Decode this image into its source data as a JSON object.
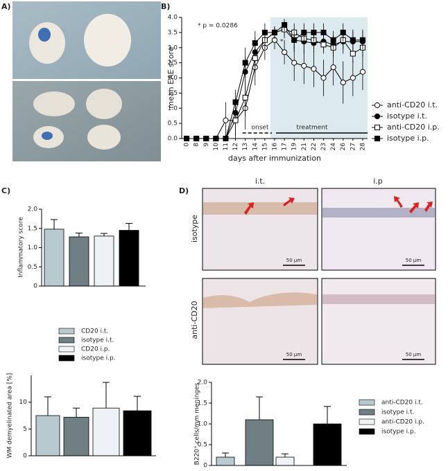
{
  "panel_labels": [
    "A)",
    "B)",
    "C)",
    "D)"
  ],
  "histology": {
    "columns": [
      "i.t.",
      "i.p"
    ],
    "rows": [
      "isotype",
      "anti-CD20"
    ],
    "scale_bar": "50 µm"
  },
  "chart_data": [
    {
      "type": "line",
      "y_label": "mean EAE score",
      "x_label": "days after immunization",
      "annotations": [
        "* p = 0.0286",
        "onset",
        "treatment",
        "*"
      ],
      "categories": [
        "0",
        "8",
        "9",
        "10",
        "11",
        "12",
        "13",
        "14",
        "15",
        "16",
        "17",
        "19",
        "21",
        "22",
        "23",
        "24",
        "26",
        "27",
        "28"
      ],
      "ylim": [
        0,
        4
      ],
      "yticks": [
        {
          "value": 0,
          "label": "0.0"
        },
        0.5,
        {
          "value": 1,
          "label": "1.0"
        },
        1.5,
        {
          "value": 2,
          "label": "2.0"
        },
        2.5,
        {
          "value": 3,
          "label": "3.0"
        },
        3.5,
        {
          "value": 4,
          "label": "4.0"
        }
      ],
      "series": [
        {
          "name": "anti-CD20 i.t.",
          "color": "#000000",
          "marker": "circle",
          "filled": false,
          "values": [
            0,
            0,
            0,
            0,
            0.6,
            0.6,
            1.0,
            2.35,
            3.0,
            3.25,
            2.85,
            2.5,
            2.4,
            2.3,
            2.0,
            2.35,
            1.85,
            2.0,
            2.2
          ],
          "errors": [
            0,
            0,
            0,
            0,
            0.6,
            0.6,
            0.7,
            0.6,
            0.4,
            0.3,
            0.4,
            0.6,
            0.6,
            0.6,
            0.6,
            0.6,
            0.7,
            0.6,
            0.6
          ]
        },
        {
          "name": "isotype i.t.",
          "color": "#000000",
          "marker": "circle",
          "filled": true,
          "values": [
            0,
            0,
            0,
            0,
            0,
            0.85,
            2.2,
            2.85,
            3.25,
            3.5,
            3.6,
            3.25,
            3.2,
            3.15,
            3.2,
            3.1,
            3.2,
            3.2,
            3.2
          ],
          "errors": [
            0,
            0,
            0,
            0,
            0,
            0.4,
            0.5,
            0.5,
            0.3,
            0.2,
            0.3,
            0.4,
            0.4,
            0.3,
            0.3,
            0.3,
            0.4,
            0.4,
            0.4
          ]
        },
        {
          "name": "anti-CD20 i.p.",
          "color": "#000000",
          "marker": "square",
          "filled": false,
          "values": [
            0,
            0,
            0,
            0,
            0,
            0.6,
            1.35,
            2.65,
            3.25,
            3.5,
            3.6,
            3.5,
            3.3,
            3.25,
            3.1,
            3.0,
            3.25,
            2.8,
            3.0
          ],
          "errors": [
            0,
            0,
            0,
            0,
            0,
            0.5,
            0.6,
            0.5,
            0.3,
            0.2,
            0.2,
            0.3,
            0.3,
            0.3,
            0.3,
            0.3,
            0.3,
            0.3,
            0.3
          ]
        },
        {
          "name": "isotype i.p.",
          "color": "#000000",
          "marker": "square",
          "filled": true,
          "values": [
            0,
            0,
            0,
            0,
            0,
            1.2,
            2.5,
            3.15,
            3.5,
            3.5,
            3.75,
            3.25,
            3.5,
            3.5,
            3.5,
            3.25,
            3.5,
            3.25,
            3.25
          ],
          "errors": [
            0,
            0,
            0,
            0,
            0,
            0.4,
            0.5,
            0.4,
            0.3,
            0.2,
            0.2,
            0.3,
            0.3,
            0.3,
            0.3,
            0.3,
            0.3,
            0.3,
            0.3
          ]
        }
      ]
    },
    {
      "type": "bar",
      "y_label": "Inflammatory score",
      "ylim": [
        0,
        2
      ],
      "yticks": [
        0,
        0.5,
        {
          "value": 1,
          "label": "1.0"
        },
        1.5,
        {
          "value": 2,
          "label": "2.0"
        }
      ],
      "series": [
        {
          "name": "CD20 i.t.",
          "color": "#b9c9d0",
          "values": [
            1.48
          ],
          "errors": [
            0.25
          ]
        },
        {
          "name": "isotype i.t.",
          "color": "#6f7f83",
          "values": [
            1.28
          ],
          "errors": [
            0.1
          ]
        },
        {
          "name": "CD20 i.p.",
          "color": "#eef2f4",
          "values": [
            1.3
          ],
          "errors": [
            0.07
          ]
        },
        {
          "name": "isotype i.p.",
          "color": "#000000",
          "values": [
            1.45
          ],
          "errors": [
            0.18
          ]
        }
      ]
    },
    {
      "type": "bar",
      "y_label": "WM demyelinated area [%]",
      "ylim": [
        0,
        15
      ],
      "yticks": [
        0,
        5,
        10
      ],
      "series": [
        {
          "color": "#b9c9d0",
          "values": [
            7.5
          ],
          "errors": [
            3.5
          ]
        },
        {
          "color": "#6f7f83",
          "values": [
            7.2
          ],
          "errors": [
            1.7
          ]
        },
        {
          "color": "#eef2f4",
          "values": [
            8.9
          ],
          "errors": [
            4.8
          ]
        },
        {
          "color": "#000000",
          "values": [
            8.4
          ],
          "errors": [
            2.7
          ]
        }
      ]
    },
    {
      "type": "bar",
      "y_label": "B220⁺ cells/mm meninges",
      "ylim": [
        0,
        2
      ],
      "yticks": [
        0,
        0.5,
        {
          "value": 1,
          "label": "1.0"
        },
        1.5,
        {
          "value": 2,
          "label": "2.0"
        }
      ],
      "series": [
        {
          "name": "anti-CD20 i.t.",
          "color": "#b9c9d0",
          "values": [
            0.2
          ],
          "errors": [
            0.1
          ]
        },
        {
          "name": "isotype i.t.",
          "color": "#6f7f83",
          "values": [
            1.1
          ],
          "errors": [
            0.55
          ]
        },
        {
          "name": "anti-CD20 i.p.",
          "color": "#eef2f4",
          "values": [
            0.2
          ],
          "errors": [
            0.08
          ]
        },
        {
          "name": "isotype i.p.",
          "color": "#000000",
          "values": [
            1.0
          ],
          "errors": [
            0.42
          ]
        }
      ]
    }
  ]
}
